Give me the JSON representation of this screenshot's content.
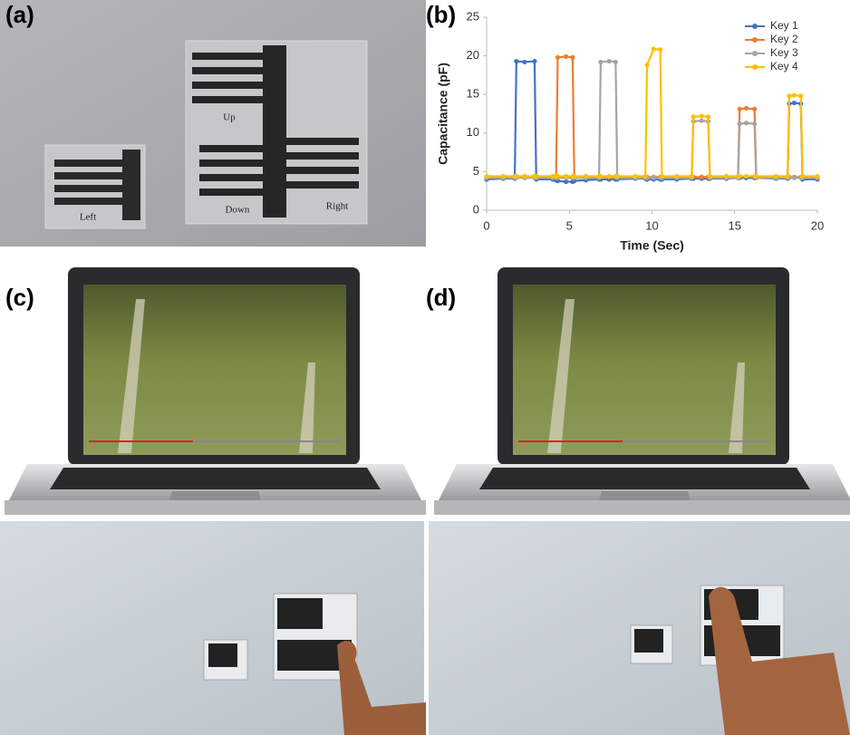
{
  "panels": {
    "a": "(a)",
    "b": "(b)",
    "c": "(c)",
    "d": "(d)"
  },
  "photo_labels": {
    "left": "Left",
    "up": "Up",
    "down": "Down",
    "right": "Right"
  },
  "chart_data": {
    "type": "line",
    "x": [
      0,
      1,
      1.7,
      1.8,
      2.3,
      2.9,
      3.0,
      4,
      4.2,
      4.3,
      4.8,
      5.2,
      5.3,
      6,
      6.8,
      6.9,
      7.4,
      7.8,
      7.9,
      9,
      9.6,
      9.7,
      10.1,
      10.5,
      10.6,
      11.5,
      12.4,
      12.5,
      13,
      13.4,
      13.5,
      14.5,
      15.2,
      15.3,
      15.7,
      16.2,
      16.3,
      17.5,
      18.2,
      18.3,
      18.6,
      19,
      19.1,
      20
    ],
    "series": [
      {
        "name": "Key 1",
        "color": "#4472c4",
        "values": [
          4,
          4.1,
          4.1,
          19.3,
          19.2,
          19.3,
          4,
          4,
          3.9,
          3.8,
          3.7,
          3.7,
          3.8,
          3.9,
          4,
          4,
          4,
          4,
          4,
          4.1,
          4.1,
          4,
          4,
          4,
          4,
          4,
          4.1,
          4.1,
          4.1,
          4.1,
          4.1,
          4.1,
          4.2,
          4.2,
          4.2,
          4.2,
          4.2,
          4.1,
          4.1,
          13.8,
          13.9,
          13.8,
          4,
          4
        ]
      },
      {
        "name": "Key 2",
        "color": "#ed7d31",
        "values": [
          4.3,
          4.3,
          4.3,
          4.3,
          4.3,
          4.3,
          4.3,
          4.3,
          4.3,
          19.8,
          19.9,
          19.8,
          4.3,
          4.3,
          4.3,
          4.3,
          4.3,
          4.3,
          4.3,
          4.3,
          4.3,
          4.3,
          4.3,
          4.3,
          4.3,
          4.3,
          4.3,
          4.3,
          4.3,
          4.3,
          4.3,
          4.3,
          4.3,
          13.1,
          13.2,
          13.1,
          4.3,
          4.3,
          4.3,
          4.3,
          4.3,
          4.3,
          4.3,
          4.3
        ]
      },
      {
        "name": "Key 3",
        "color": "#a5a5a5",
        "values": [
          4.2,
          4.2,
          4.2,
          4.2,
          4.2,
          4.2,
          4.2,
          4.2,
          4.2,
          4.2,
          4.2,
          4.2,
          4.2,
          4.2,
          4.2,
          19.2,
          19.3,
          19.2,
          4.2,
          4.2,
          4.2,
          4.2,
          4.2,
          4.2,
          4.2,
          4.2,
          4.2,
          11.5,
          11.6,
          11.5,
          4.2,
          4.2,
          4.2,
          11.2,
          11.3,
          11.2,
          4.2,
          4.2,
          4.2,
          4.2,
          4.2,
          4.2,
          4.2,
          4.2
        ]
      },
      {
        "name": "Key 4",
        "color": "#ffc000",
        "values": [
          4.4,
          4.4,
          4.4,
          4.4,
          4.4,
          4.4,
          4.4,
          4.4,
          4.4,
          4.4,
          4.4,
          4.4,
          4.4,
          4.4,
          4.4,
          4.4,
          4.4,
          4.4,
          4.4,
          4.4,
          4.4,
          18.8,
          20.9,
          20.8,
          4.4,
          4.4,
          4.4,
          12.1,
          12.2,
          12.1,
          4.4,
          4.4,
          4.4,
          4.4,
          4.4,
          4.4,
          4.4,
          4.4,
          4.4,
          14.8,
          14.9,
          14.8,
          4.4,
          4.4
        ]
      }
    ],
    "xlabel": "Time (Sec)",
    "ylabel": "Capacitance (pF)",
    "xlim": [
      0,
      20
    ],
    "ylim": [
      0,
      25
    ],
    "xticks": [
      0,
      5,
      10,
      15,
      20
    ],
    "yticks": [
      0,
      5,
      10,
      15,
      20,
      25
    ],
    "legend": "upper right"
  }
}
